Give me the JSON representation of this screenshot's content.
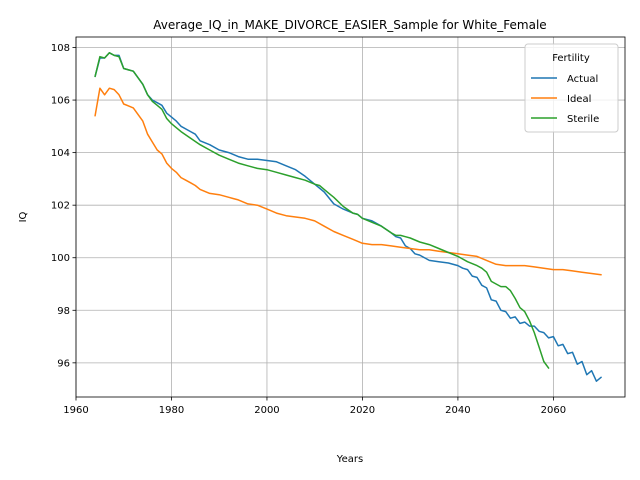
{
  "chart_data": {
    "type": "line",
    "title": "Average_IQ_in_MAKE_DIVORCE_EASIER_Sample for White_Female",
    "xlabel": "Years",
    "ylabel": "IQ",
    "xlim": [
      1960,
      2075
    ],
    "ylim": [
      94.7,
      108.4
    ],
    "xticks": [
      1960,
      1980,
      2000,
      2020,
      2040,
      2060
    ],
    "yticks": [
      96,
      98,
      100,
      102,
      104,
      106,
      108
    ],
    "grid": true,
    "legend": {
      "title": "Fertility",
      "placement": "top-right"
    },
    "series": [
      {
        "name": "Actual",
        "color": "#1f77b4",
        "x": [
          1964,
          1965,
          1966,
          1967,
          1968,
          1969,
          1970,
          1972,
          1974,
          1975,
          1976,
          1977,
          1978,
          1979,
          1980,
          1981,
          1982,
          1984,
          1985,
          1986,
          1988,
          1990,
          1992,
          1994,
          1996,
          1998,
          2000,
          2002,
          2004,
          2006,
          2008,
          2010,
          2012,
          2014,
          2016,
          2018,
          2019,
          2020,
          2022,
          2024,
          2026,
          2027,
          2028,
          2029,
          2030,
          2031,
          2032,
          2034,
          2036,
          2038,
          2040,
          2041,
          2042,
          2043,
          2044,
          2045,
          2046,
          2047,
          2048,
          2049,
          2050,
          2051,
          2052,
          2053,
          2054,
          2055,
          2056,
          2057,
          2058,
          2059,
          2060,
          2061,
          2062,
          2063,
          2064,
          2065,
          2066,
          2067,
          2068,
          2069,
          2070
        ],
        "values": [
          106.9,
          107.6,
          107.6,
          107.8,
          107.7,
          107.7,
          107.2,
          107.1,
          106.6,
          106.2,
          106.0,
          105.9,
          105.8,
          105.5,
          105.35,
          105.2,
          105.0,
          104.8,
          104.7,
          104.45,
          104.3,
          104.1,
          104.0,
          103.85,
          103.75,
          103.75,
          103.7,
          103.65,
          103.5,
          103.35,
          103.1,
          102.8,
          102.5,
          102.05,
          101.85,
          101.7,
          101.65,
          101.5,
          101.4,
          101.2,
          100.95,
          100.8,
          100.75,
          100.45,
          100.35,
          100.15,
          100.1,
          99.9,
          99.85,
          99.8,
          99.7,
          99.6,
          99.55,
          99.3,
          99.25,
          98.95,
          98.85,
          98.4,
          98.35,
          98.0,
          97.95,
          97.7,
          97.75,
          97.5,
          97.55,
          97.4,
          97.4,
          97.2,
          97.15,
          96.95,
          97.0,
          96.65,
          96.7,
          96.35,
          96.4,
          95.95,
          96.05,
          95.55,
          95.7,
          95.3,
          95.45
        ]
      },
      {
        "name": "Ideal",
        "color": "#ff7f0e",
        "x": [
          1964,
          1965,
          1966,
          1967,
          1968,
          1969,
          1970,
          1972,
          1974,
          1975,
          1976,
          1977,
          1978,
          1979,
          1980,
          1981,
          1982,
          1983,
          1984,
          1985,
          1986,
          1988,
          1990,
          1992,
          1993,
          1994,
          1996,
          1998,
          2000,
          2002,
          2004,
          2006,
          2008,
          2010,
          2012,
          2014,
          2016,
          2018,
          2020,
          2022,
          2024,
          2026,
          2028,
          2030,
          2032,
          2034,
          2036,
          2038,
          2040,
          2042,
          2044,
          2046,
          2048,
          2050,
          2052,
          2054,
          2056,
          2058,
          2060,
          2062,
          2064,
          2066,
          2068,
          2070
        ],
        "values": [
          105.4,
          106.45,
          106.2,
          106.45,
          106.4,
          106.2,
          105.85,
          105.7,
          105.2,
          104.7,
          104.4,
          104.1,
          103.95,
          103.6,
          103.4,
          103.25,
          103.05,
          102.95,
          102.85,
          102.75,
          102.6,
          102.45,
          102.4,
          102.3,
          102.25,
          102.2,
          102.05,
          102.0,
          101.85,
          101.7,
          101.6,
          101.55,
          101.5,
          101.4,
          101.2,
          101.0,
          100.85,
          100.7,
          100.55,
          100.5,
          100.5,
          100.45,
          100.4,
          100.35,
          100.3,
          100.3,
          100.25,
          100.2,
          100.15,
          100.1,
          100.05,
          99.9,
          99.75,
          99.7,
          99.7,
          99.7,
          99.65,
          99.6,
          99.55,
          99.55,
          99.5,
          99.45,
          99.4,
          99.35
        ]
      },
      {
        "name": "Sterile",
        "color": "#2ca02c",
        "x": [
          1964,
          1965,
          1966,
          1967,
          1968,
          1969,
          1970,
          1972,
          1974,
          1975,
          1976,
          1977,
          1978,
          1979,
          1980,
          1981,
          1982,
          1984,
          1986,
          1988,
          1990,
          1992,
          1994,
          1996,
          1998,
          2000,
          2002,
          2004,
          2006,
          2008,
          2010,
          2011,
          2012,
          2013,
          2014,
          2016,
          2018,
          2019,
          2020,
          2022,
          2024,
          2026,
          2027,
          2028,
          2029,
          2030,
          2032,
          2034,
          2036,
          2038,
          2040,
          2042,
          2044,
          2045,
          2046,
          2047,
          2048,
          2049,
          2050,
          2051,
          2052,
          2053,
          2054,
          2055,
          2056,
          2057,
          2058,
          2059
        ],
        "values": [
          106.9,
          107.65,
          107.6,
          107.8,
          107.7,
          107.65,
          107.2,
          107.1,
          106.6,
          106.2,
          105.95,
          105.8,
          105.65,
          105.3,
          105.1,
          104.95,
          104.8,
          104.55,
          104.3,
          104.1,
          103.9,
          103.75,
          103.6,
          103.5,
          103.4,
          103.35,
          103.25,
          103.15,
          103.05,
          102.95,
          102.8,
          102.75,
          102.6,
          102.45,
          102.3,
          101.95,
          101.7,
          101.65,
          101.5,
          101.35,
          101.2,
          100.95,
          100.85,
          100.85,
          100.8,
          100.75,
          100.6,
          100.5,
          100.35,
          100.2,
          100.05,
          99.85,
          99.7,
          99.6,
          99.45,
          99.1,
          99.0,
          98.9,
          98.9,
          98.75,
          98.45,
          98.1,
          97.95,
          97.6,
          97.15,
          96.6,
          96.05,
          95.8
        ]
      }
    ]
  }
}
